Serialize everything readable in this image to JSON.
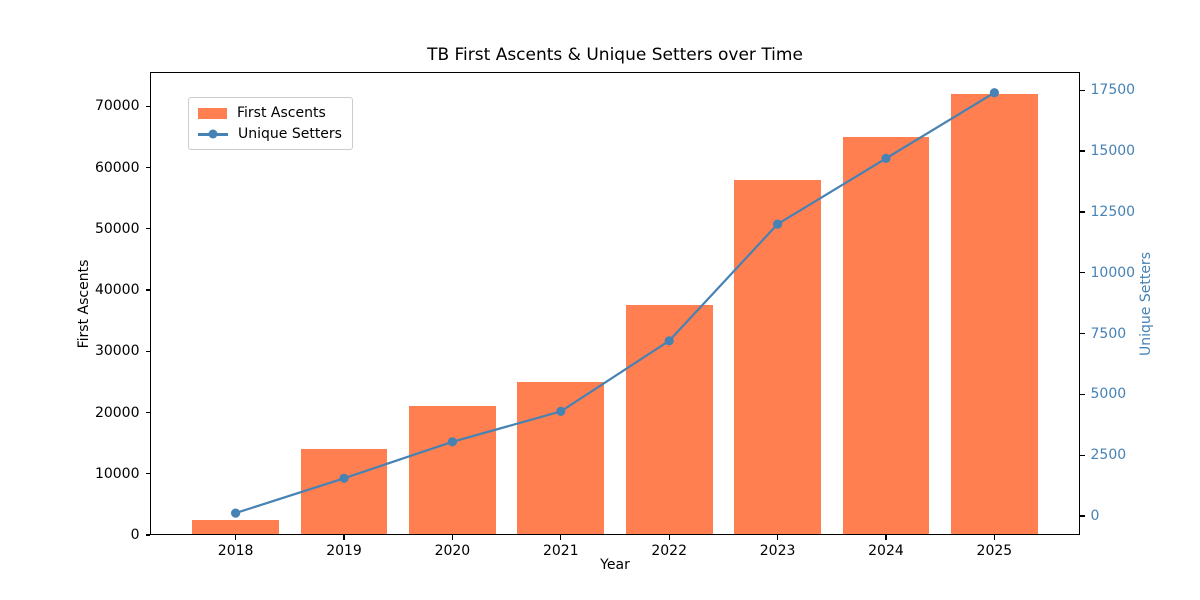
{
  "chart_data": {
    "type": "bar",
    "title": "TB First Ascents & Unique Setters over Time",
    "xlabel": "Year",
    "ylabel_left": "First Ascents",
    "ylabel_right": "Unique Setters",
    "categories": [
      "2018",
      "2019",
      "2020",
      "2021",
      "2022",
      "2023",
      "2024",
      "2025"
    ],
    "series": [
      {
        "name": "First Ascents",
        "type": "bar",
        "axis": "left",
        "color": "#FF7F50",
        "values": [
          2500,
          14000,
          21000,
          25000,
          37500,
          58000,
          65000,
          72000
        ]
      },
      {
        "name": "Unique Setters",
        "type": "line",
        "axis": "right",
        "color": "#4682B4",
        "values": [
          120,
          1550,
          3050,
          4300,
          7200,
          12000,
          14700,
          17400
        ]
      }
    ],
    "left_axis": {
      "ticks": [
        0,
        10000,
        20000,
        30000,
        40000,
        50000,
        60000,
        70000
      ],
      "ylim": [
        0,
        75600
      ],
      "label_color": "#000000"
    },
    "right_axis": {
      "ticks": [
        0,
        2500,
        5000,
        7500,
        10000,
        12500,
        15000,
        17500
      ],
      "ylim": [
        -780,
        18250
      ],
      "label_color": "#4682B4"
    },
    "xlim": [
      2017.21,
      2025.79
    ],
    "bar_width": 0.8,
    "grid": false,
    "legend": {
      "position": "upper left"
    },
    "colors": {
      "bar": "#FF7F50",
      "line": "#4682B4",
      "text": "#000000",
      "spine": "#000000",
      "legend_border": "#cccccc"
    }
  }
}
